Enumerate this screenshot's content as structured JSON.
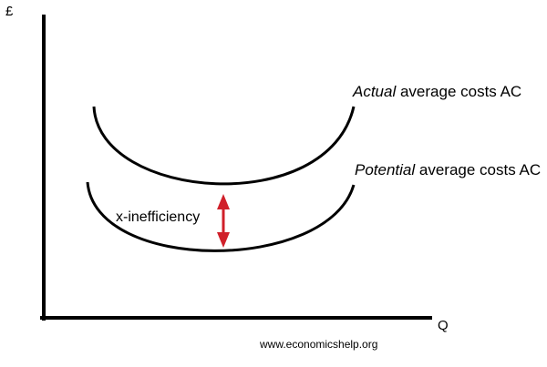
{
  "axes": {
    "y_label": "£",
    "x_label": "Q"
  },
  "curves": {
    "actual": {
      "label_italic": "Actual",
      "label_rest": " average costs AC"
    },
    "potential": {
      "label_italic": "Potential",
      "label_rest": " average costs AC"
    }
  },
  "annotation": {
    "label": "x-inefficiency",
    "arrow_color": "#d0202a"
  },
  "source": {
    "text": "www.economicshelp.org"
  }
}
